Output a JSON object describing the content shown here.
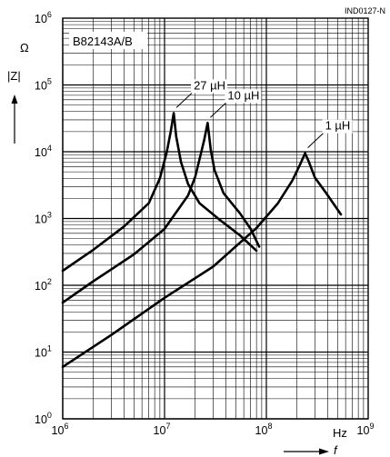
{
  "figure_id": "IND0127-N",
  "chart_data": {
    "type": "line",
    "title": "B82143A/B",
    "xlabel": "f",
    "xunit": "Hz",
    "ylabel": "|Z|",
    "yunit": "Ω",
    "xscale": "log",
    "yscale": "log",
    "xlim": [
      1000000,
      1000000000
    ],
    "ylim": [
      1,
      1000000
    ],
    "x_ticks": [
      {
        "base": "10",
        "exp": "6"
      },
      {
        "base": "10",
        "exp": "7"
      },
      {
        "base": "10",
        "exp": "8"
      },
      {
        "base": "10",
        "exp": "9"
      }
    ],
    "y_ticks": [
      {
        "base": "10",
        "exp": "0"
      },
      {
        "base": "10",
        "exp": "1"
      },
      {
        "base": "10",
        "exp": "2"
      },
      {
        "base": "10",
        "exp": "3"
      },
      {
        "base": "10",
        "exp": "4"
      },
      {
        "base": "10",
        "exp": "5"
      },
      {
        "base": "10",
        "exp": "6"
      }
    ],
    "grid": true,
    "series": [
      {
        "name": "27 µH",
        "points": [
          [
            1000000,
            165
          ],
          [
            2000000,
            340
          ],
          [
            4000000,
            760
          ],
          [
            7000000,
            1700
          ],
          [
            9000000,
            4000
          ],
          [
            10500000,
            9800
          ],
          [
            11500000,
            20000
          ],
          [
            12300000,
            38000
          ],
          [
            13000000,
            17000
          ],
          [
            14500000,
            7000
          ],
          [
            17000000,
            3300
          ],
          [
            22000000,
            1700
          ],
          [
            35000000,
            950
          ],
          [
            55000000,
            560
          ],
          [
            80000000,
            330
          ]
        ]
      },
      {
        "name": "10 µH",
        "points": [
          [
            1000000,
            55
          ],
          [
            2000000,
            115
          ],
          [
            5000000,
            290
          ],
          [
            10000000,
            700
          ],
          [
            17000000,
            2200
          ],
          [
            20000000,
            4200
          ],
          [
            23000000,
            10000
          ],
          [
            24500000,
            15000
          ],
          [
            26500000,
            27000
          ],
          [
            28500000,
            10500
          ],
          [
            31000000,
            5300
          ],
          [
            38000000,
            2400
          ],
          [
            55000000,
            1200
          ],
          [
            70000000,
            700
          ],
          [
            85000000,
            380
          ]
        ]
      },
      {
        "name": "1 µH",
        "points": [
          [
            1000000,
            6
          ],
          [
            3000000,
            18
          ],
          [
            10000000,
            65
          ],
          [
            30000000,
            190
          ],
          [
            80000000,
            720
          ],
          [
            130000000,
            1700
          ],
          [
            180000000,
            3700
          ],
          [
            215000000,
            6500
          ],
          [
            240000000,
            9500
          ],
          [
            260000000,
            7200
          ],
          [
            300000000,
            4100
          ],
          [
            380000000,
            2500
          ],
          [
            540000000,
            1150
          ]
        ]
      }
    ]
  }
}
